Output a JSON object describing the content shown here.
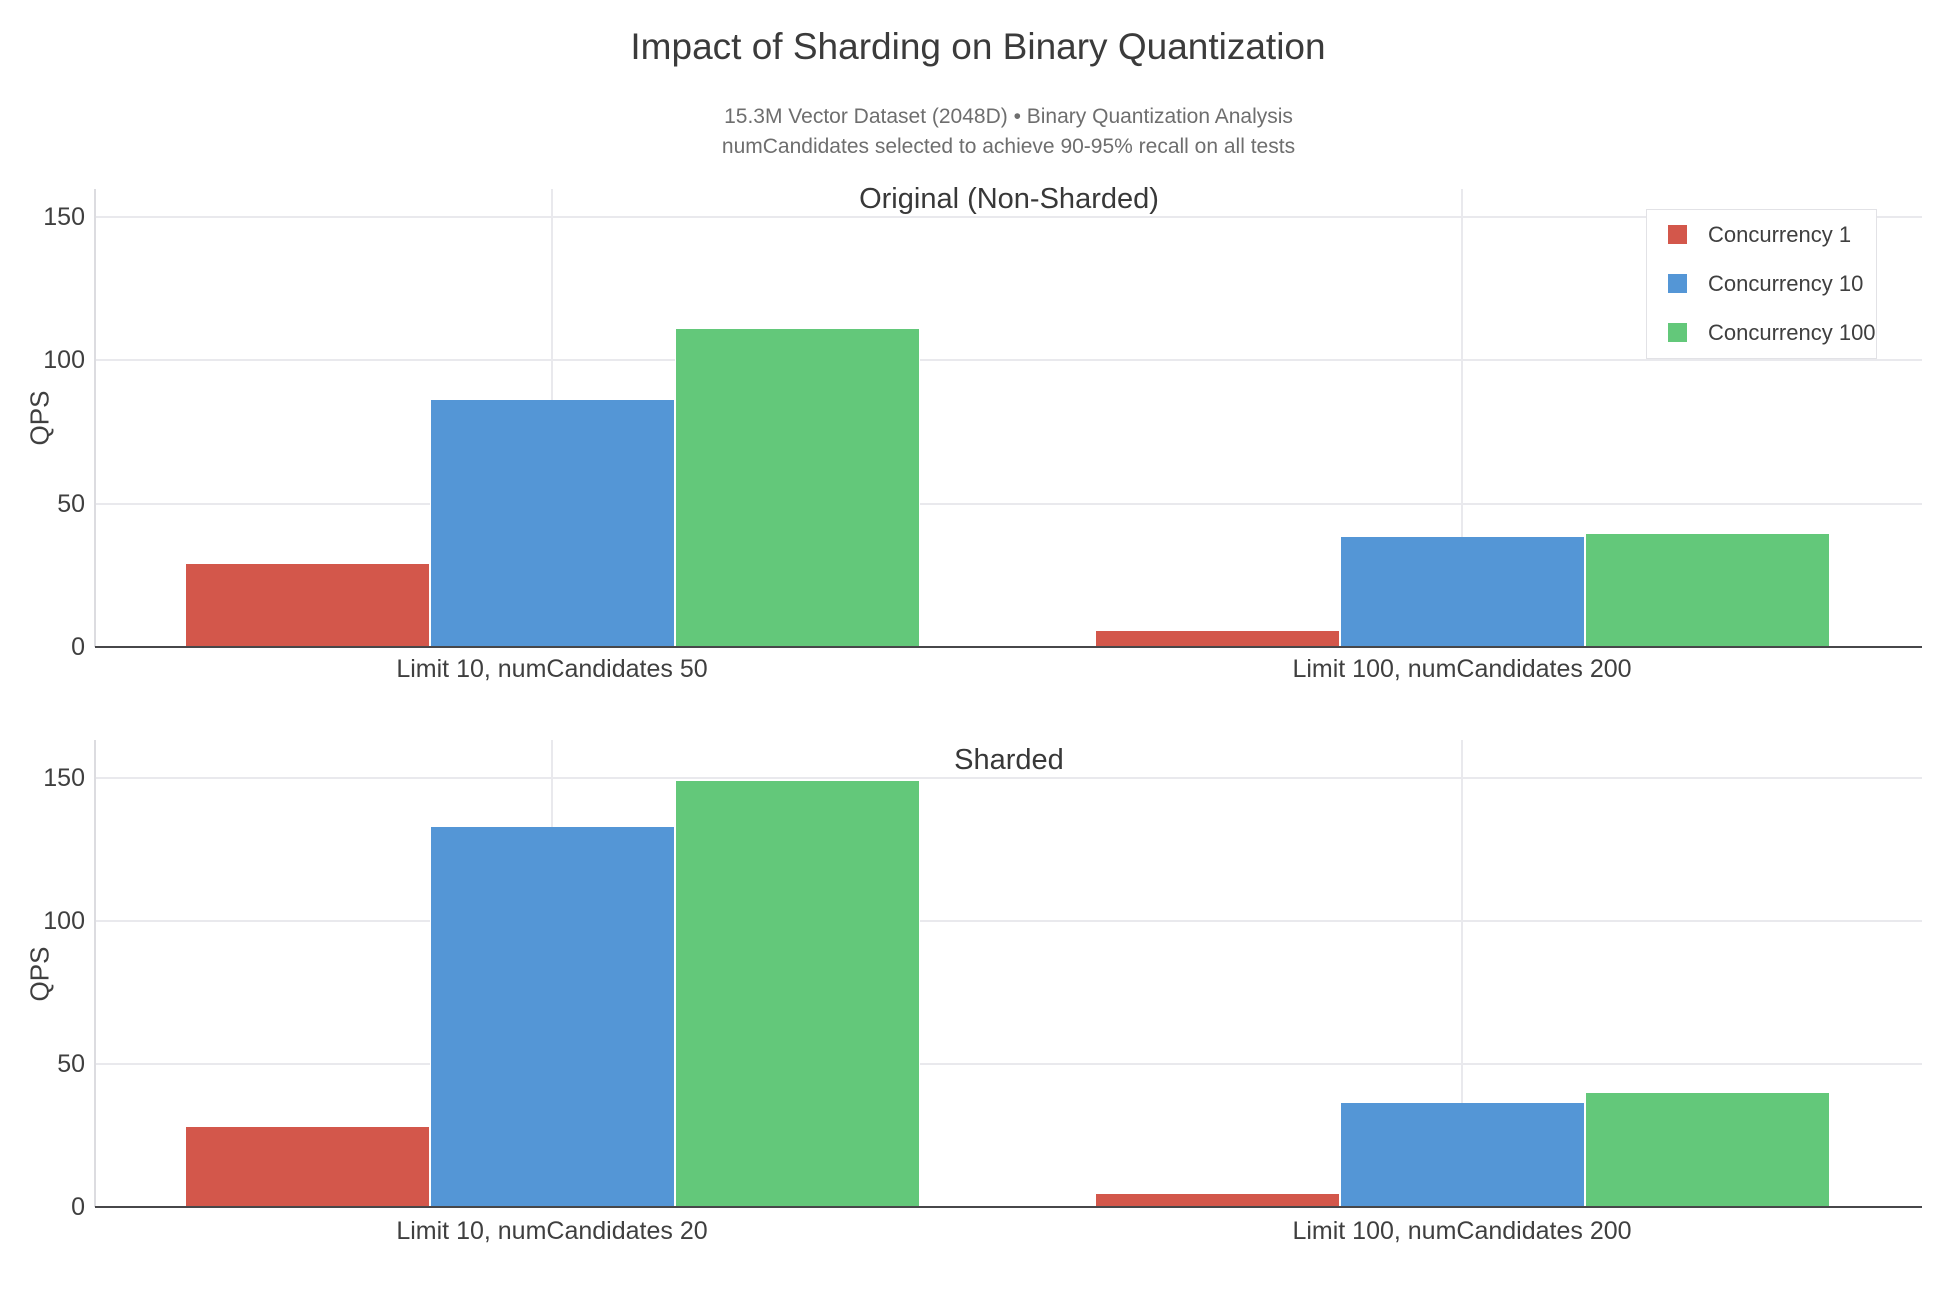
{
  "page": {
    "title": "Impact of Sharding on Binary Quantization",
    "subtitle_line1": "15.3M Vector Dataset (2048D) • Binary Quantization Analysis",
    "subtitle_line2": "numCandidates selected to achieve 90-95% recall on all tests"
  },
  "colors": {
    "concurrency_1": "#d3574b",
    "concurrency_10": "#5496d6",
    "concurrency_100": "#63c87a",
    "grid": "#e9e9ed",
    "axis_line": "#dcdce0",
    "baseline": "#47474a",
    "title_text": "#3b3b3b",
    "subtitle_text": "#6e6e6e",
    "tick_text": "#3f3f3f"
  },
  "legend": {
    "items": [
      {
        "label": "Concurrency 1",
        "color": "#d3574b"
      },
      {
        "label": "Concurrency 10",
        "color": "#5496d6"
      },
      {
        "label": "Concurrency 100",
        "color": "#63c87a"
      }
    ]
  },
  "chart_data": [
    {
      "type": "bar",
      "title": "Original (Non-Sharded)",
      "xlabel": "",
      "ylabel": "QPS",
      "ylim": [
        0,
        160
      ],
      "yticks": [
        0,
        50,
        100,
        150
      ],
      "grid": true,
      "legend_position": "top-right",
      "categories": [
        "Limit 10, numCandidates 50",
        "Limit 100, numCandidates 200"
      ],
      "series": [
        {
          "name": "Concurrency 1",
          "color": "#d3574b",
          "values": [
            29,
            5.5
          ]
        },
        {
          "name": "Concurrency 10",
          "color": "#5496d6",
          "values": [
            86,
            38.5
          ]
        },
        {
          "name": "Concurrency 100",
          "color": "#63c87a",
          "values": [
            111,
            39.5
          ]
        }
      ]
    },
    {
      "type": "bar",
      "title": "Sharded",
      "xlabel": "",
      "ylabel": "QPS",
      "ylim": [
        0,
        160
      ],
      "yticks": [
        0,
        50,
        100,
        150
      ],
      "grid": true,
      "categories": [
        "Limit 10, numCandidates 20",
        "Limit 100, numCandidates 200"
      ],
      "series": [
        {
          "name": "Concurrency 1",
          "color": "#d3574b",
          "values": [
            28,
            4.5
          ]
        },
        {
          "name": "Concurrency 10",
          "color": "#5496d6",
          "values": [
            133,
            36.5
          ]
        },
        {
          "name": "Concurrency 100",
          "color": "#63c87a",
          "values": [
            149,
            40
          ]
        }
      ]
    }
  ]
}
